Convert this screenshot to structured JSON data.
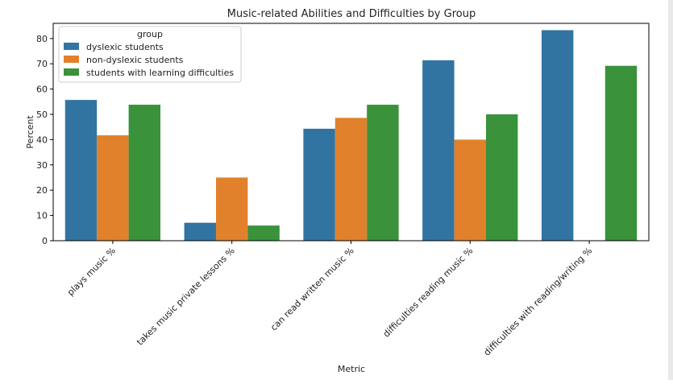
{
  "chart_data": {
    "type": "bar",
    "title": "Music-related Abilities and Difficulties by Group",
    "xlabel": "Metric",
    "ylabel": "Percent",
    "ylim": [
      0,
      86
    ],
    "yticks": [
      0,
      10,
      20,
      30,
      40,
      50,
      60,
      70,
      80
    ],
    "categories": [
      "plays music %",
      "takes music private lessons %",
      "can read written music %",
      "difficulties reading music %",
      "difficulties with reading/writing %"
    ],
    "legend": {
      "title": "group",
      "placement": "top-left"
    },
    "grid": false,
    "series": [
      {
        "name": "dyslexic students",
        "color": "#3274a1",
        "values": [
          55.7,
          7.1,
          44.3,
          71.4,
          83.3
        ]
      },
      {
        "name": "non-dyslexic students",
        "color": "#e1812c",
        "values": [
          41.7,
          25.0,
          48.6,
          40.0,
          0
        ]
      },
      {
        "name": "students with learning difficulties",
        "color": "#3a923a",
        "values": [
          53.8,
          6.0,
          53.8,
          50.0,
          69.2
        ]
      }
    ]
  }
}
